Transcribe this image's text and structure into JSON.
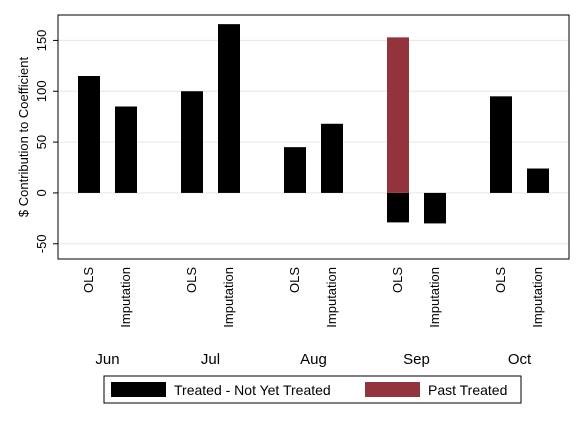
{
  "chart_data": {
    "type": "bar",
    "ylabel": "$ Contribution to Coefficient",
    "ylim": [
      -65,
      175
    ],
    "yticks": [
      -50,
      0,
      50,
      100,
      150
    ],
    "grid": true,
    "groups": [
      "Jun",
      "Jul",
      "Aug",
      "Sep",
      "Oct"
    ],
    "bar_labels": [
      "OLS",
      "Imputation"
    ],
    "series": [
      {
        "name": "Treated - Not Yet Treated",
        "color": "#000000",
        "values": {
          "Jun": [
            115,
            85
          ],
          "Jul": [
            100,
            166
          ],
          "Aug": [
            45,
            68
          ],
          "Sep": [
            -29,
            -30
          ],
          "Oct": [
            95,
            24
          ]
        }
      },
      {
        "name": "Past Treated",
        "color": "#93343c",
        "values": {
          "Jun": [
            0,
            0
          ],
          "Jul": [
            0,
            0
          ],
          "Aug": [
            0,
            0
          ],
          "Sep": [
            153,
            0
          ],
          "Oct": [
            0,
            0
          ]
        }
      }
    ],
    "legend": "bottom"
  }
}
